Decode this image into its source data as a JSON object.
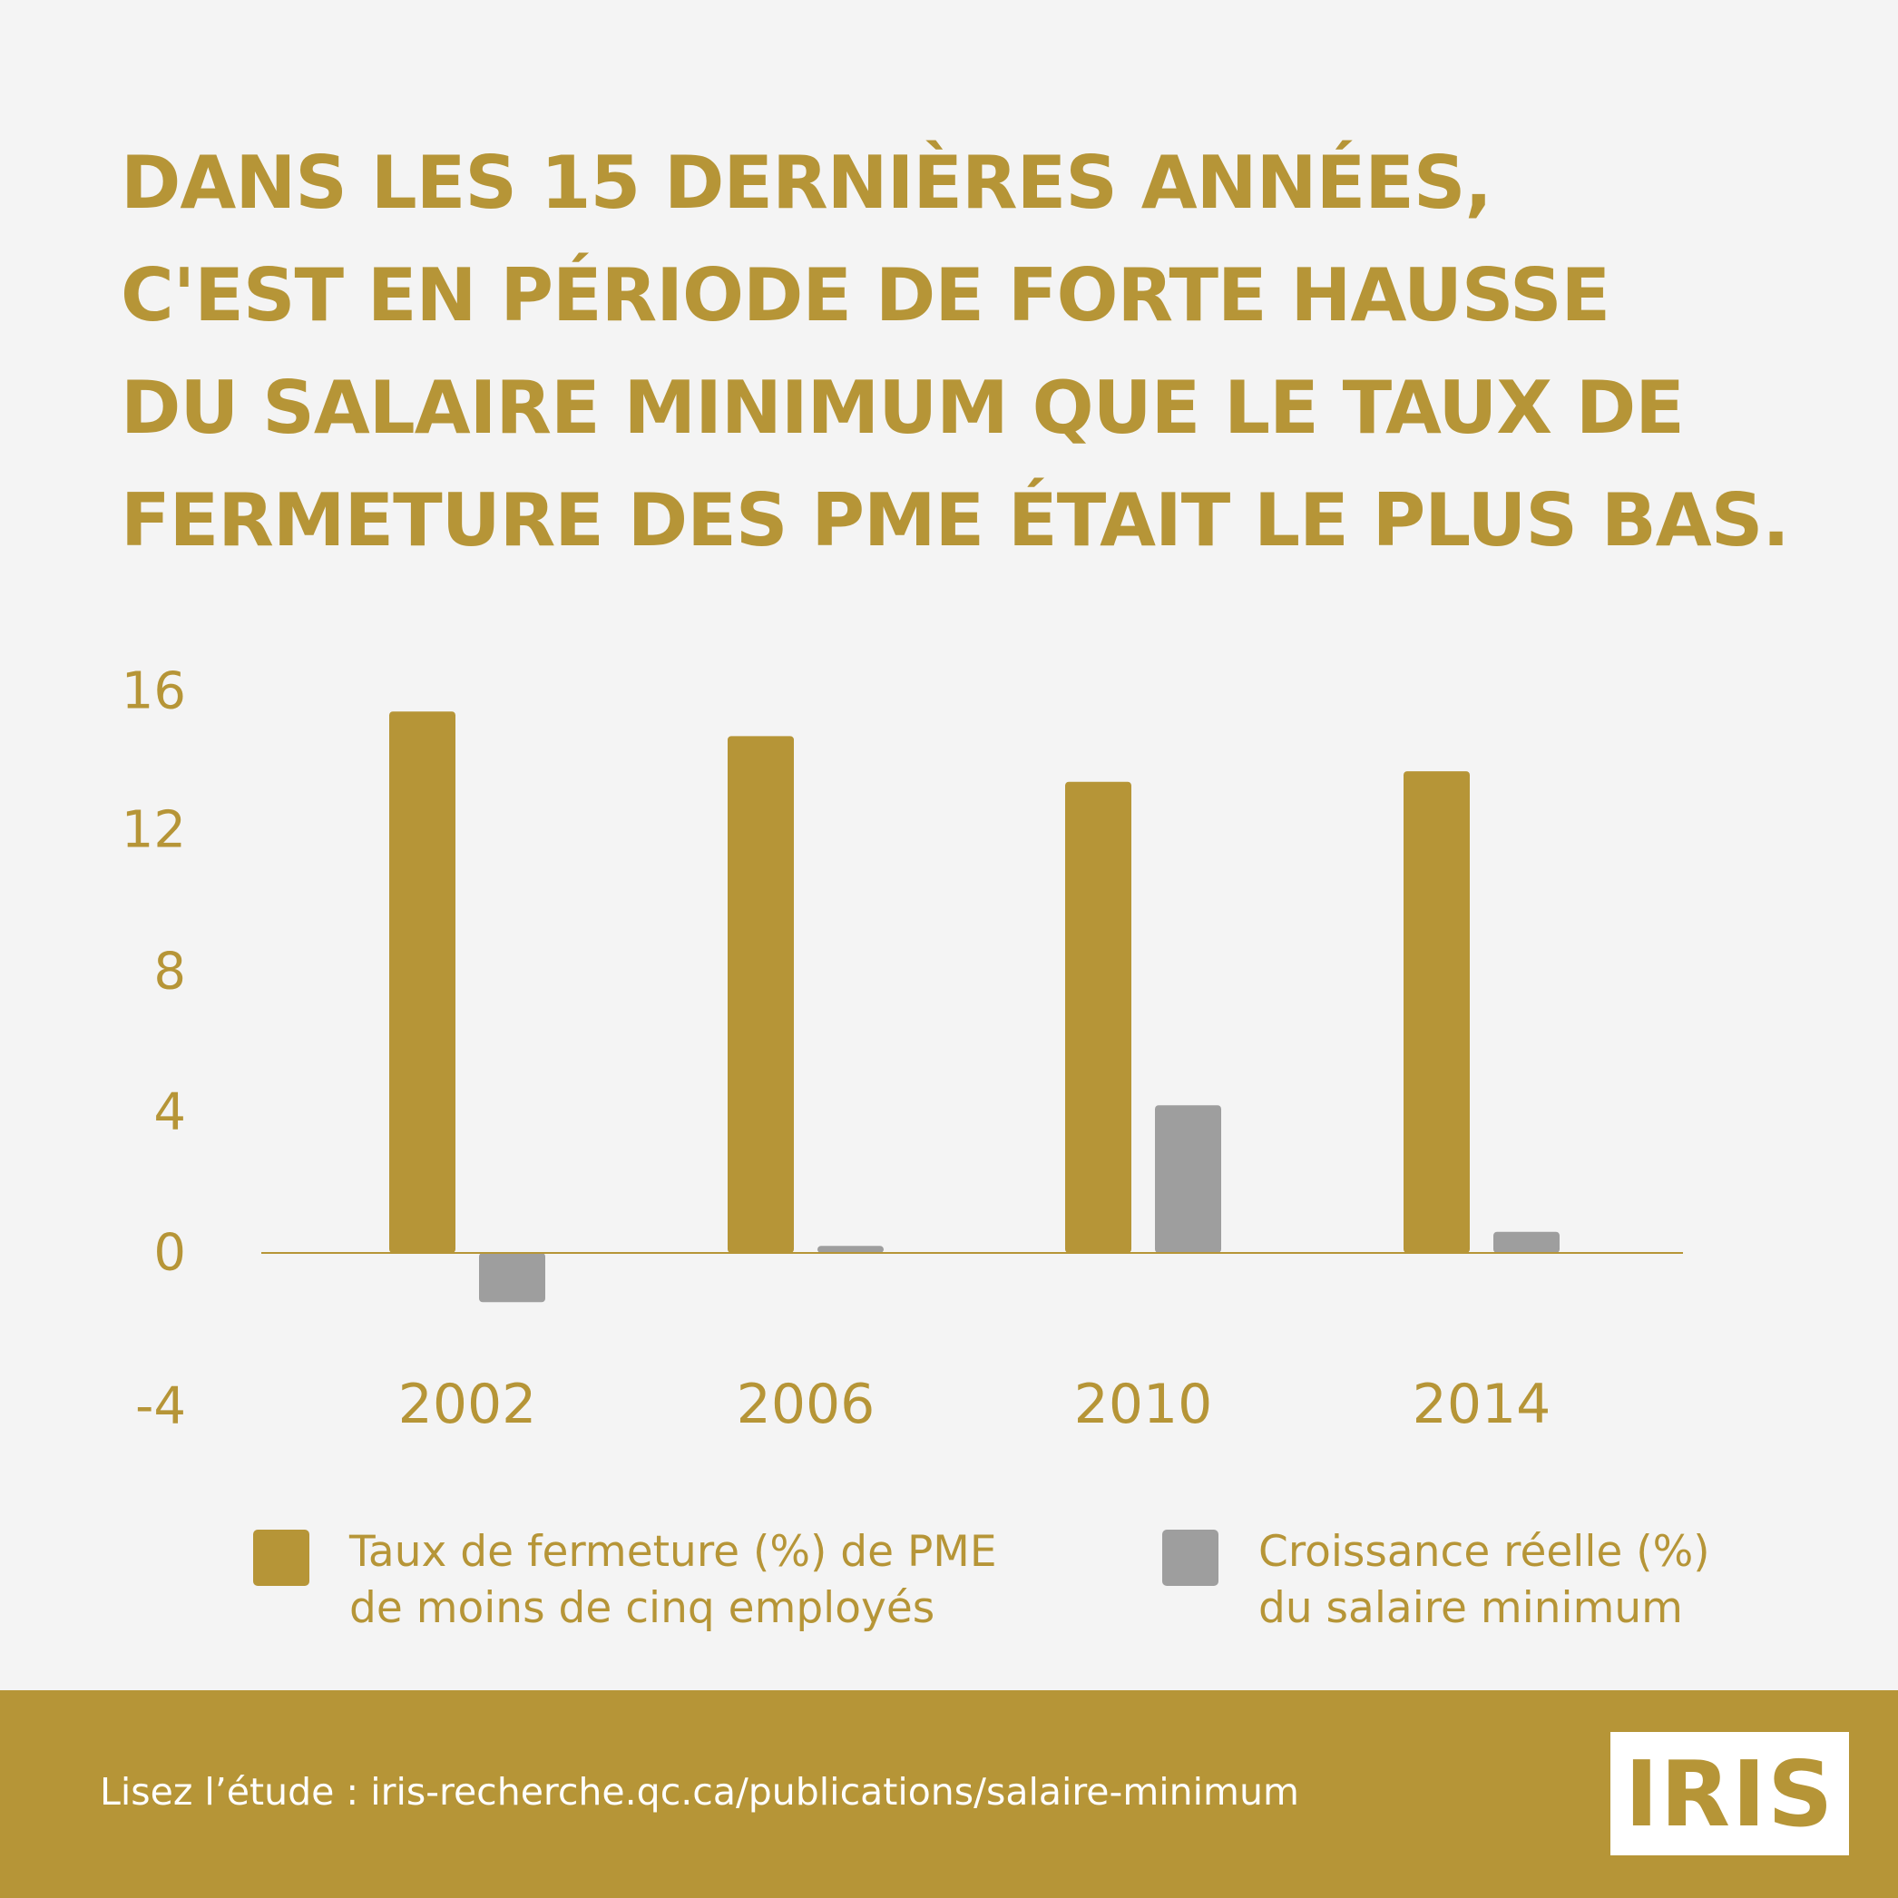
{
  "headline": [
    "DANS LES 15 DERNIÈRES ANNÉES,",
    "C'EST EN PÉRIODE DE FORTE HAUSSE",
    "DU SALAIRE MINIMUM QUE LE TAUX DE",
    "FERMETURE DES PME ÉTAIT LE PLUS BAS."
  ],
  "chart_data": {
    "type": "bar",
    "categories": [
      "2002",
      "2006",
      "2010",
      "2014"
    ],
    "series": [
      {
        "name": "Taux de fermeture (%) de PME de moins de cinq employés",
        "color": "#b69537",
        "values": [
          15.4,
          14.7,
          13.4,
          13.7
        ]
      },
      {
        "name": "Croissance réelle (%) du salaire minimum",
        "color": "#9e9e9e",
        "values": [
          -1.4,
          0.2,
          4.2,
          0.6
        ]
      }
    ],
    "yticks": [
      "16",
      "12",
      "8",
      "4",
      "0",
      "-4"
    ],
    "ylim": [
      -4,
      16
    ],
    "grid": false,
    "legend_position": "bottom"
  },
  "legend": [
    {
      "lines": [
        "Taux de fermeture (%) de PME",
        "de moins de cinq employés"
      ],
      "color": "#b69537"
    },
    {
      "lines": [
        "Croissance réelle (%)",
        "du salaire minimum"
      ],
      "color": "#9e9e9e"
    }
  ],
  "footer": {
    "link_text": "Lisez l’étude : iris-recherche.qc.ca/publications/salaire-minimum",
    "logo": "IRIS"
  },
  "colors": {
    "accent": "#b69537",
    "secondary": "#9e9e9e",
    "background": "#f4f4f4"
  }
}
